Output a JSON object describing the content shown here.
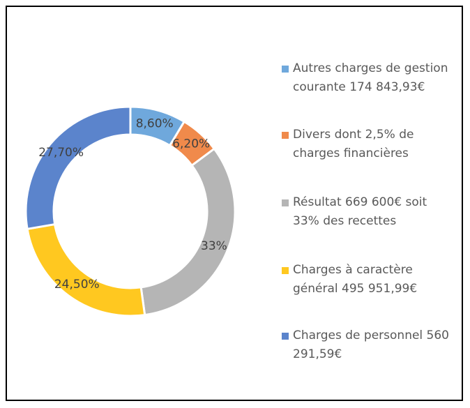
{
  "chart_data": {
    "type": "donut",
    "categories": [
      "Autres charges de gestion courante 174 843,93€",
      "Divers dont 2,5% de charges financières",
      "Résultat 669 600€ soit 33% des recettes",
      "Charges à caractère général 495 951,99€",
      "Charges de personnel 560 291,59€"
    ],
    "values": [
      8.6,
      6.2,
      33,
      24.5,
      27.7
    ],
    "value_labels": [
      "8,60%",
      "6,20%",
      "33%",
      "24,50%",
      "27,70%"
    ],
    "colors": [
      "#6fa8dc",
      "#f08a4b",
      "#b5b5b5",
      "#ffc820",
      "#5b84cc"
    ],
    "legend": "right"
  }
}
